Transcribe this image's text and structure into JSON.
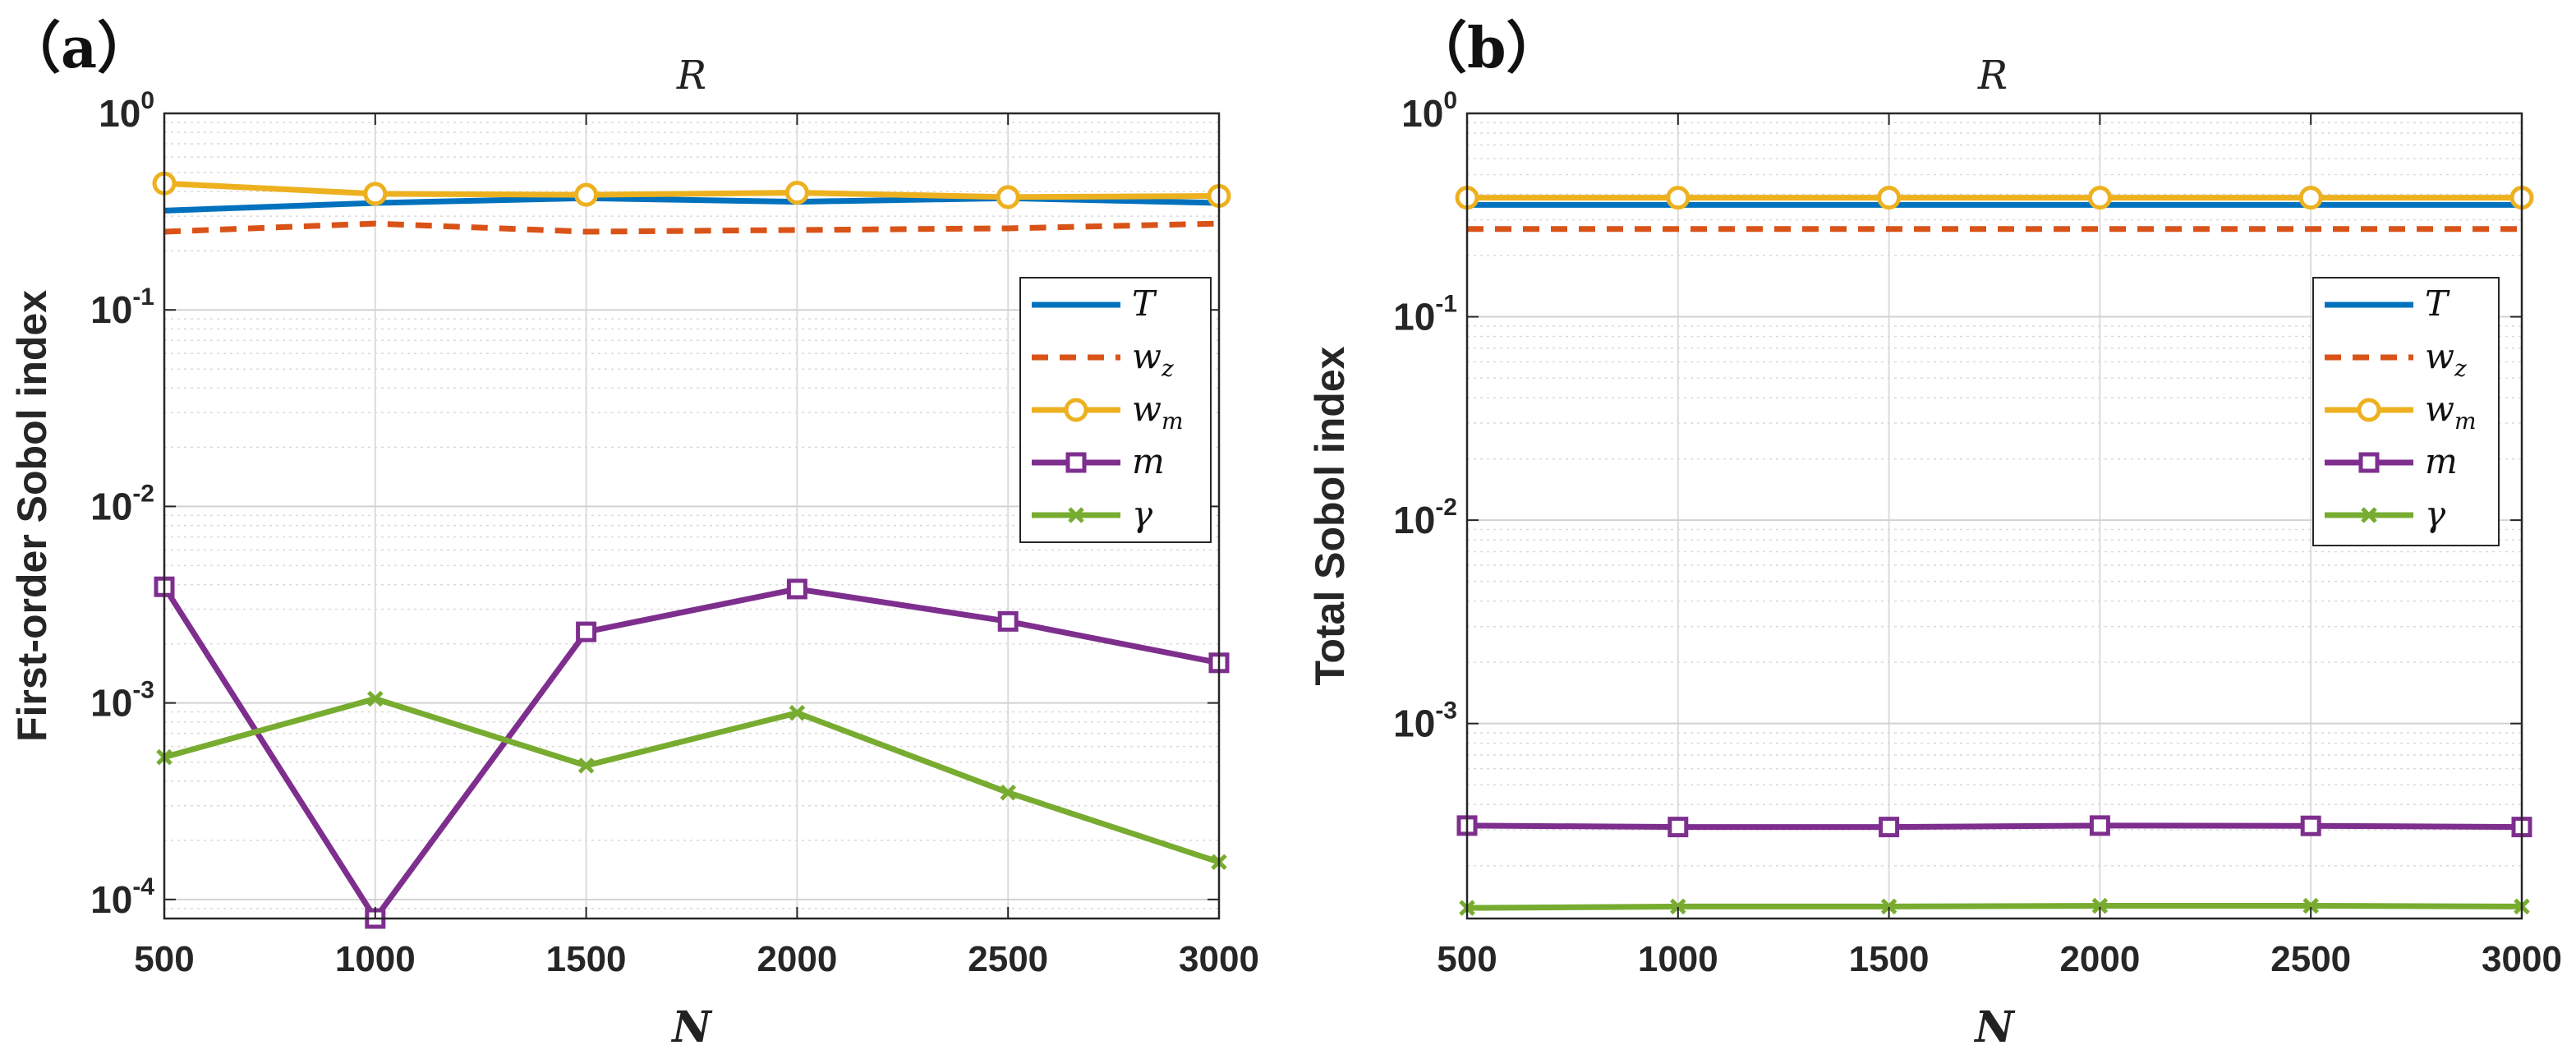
{
  "colors": {
    "T": "#0072BD",
    "w_z": "#D95319",
    "w_m": "#EDB120",
    "m": "#7E2F8E",
    "gamma": "#77AC30"
  },
  "chart_data": [
    {
      "panel_label": "（a）",
      "type": "line",
      "title": "R",
      "xlabel": "N",
      "ylabel": "First-order Sobol index",
      "yscale": "log",
      "xlim": [
        500,
        3000
      ],
      "ylim": [
        8e-05,
        1
      ],
      "grid": true,
      "legend_position": "upper-right",
      "x": [
        500,
        1000,
        1500,
        2000,
        2500,
        3000
      ],
      "xticks": [
        500,
        1000,
        1500,
        2000,
        2500,
        3000
      ],
      "xtick_labels": [
        "500",
        "1000",
        "1500",
        "2000",
        "2500",
        "3000"
      ],
      "yticks": [
        {
          "value": 1,
          "base": "10",
          "exp": "0"
        },
        {
          "value": 0.1,
          "base": "10",
          "exp": "-1"
        },
        {
          "value": 0.01,
          "base": "10",
          "exp": "-2"
        },
        {
          "value": 0.001,
          "base": "10",
          "exp": "-3"
        },
        {
          "value": 0.0001,
          "base": "10",
          "exp": "-4"
        }
      ],
      "series": [
        {
          "key": "T",
          "name": "T",
          "sub": "",
          "style": "solid",
          "marker": "none",
          "values": [
            0.32,
            0.35,
            0.37,
            0.355,
            0.37,
            0.35
          ]
        },
        {
          "key": "w_z",
          "name": "w",
          "sub": "z",
          "style": "dashed",
          "marker": "none",
          "values": [
            0.25,
            0.275,
            0.25,
            0.255,
            0.26,
            0.275
          ]
        },
        {
          "key": "w_m",
          "name": "w",
          "sub": "m",
          "style": "solid",
          "marker": "circle",
          "values": [
            0.44,
            0.39,
            0.385,
            0.395,
            0.375,
            0.38
          ]
        },
        {
          "key": "m",
          "name": "m",
          "sub": "",
          "style": "solid",
          "marker": "square",
          "values": [
            0.0039,
            8e-05,
            0.0023,
            0.0038,
            0.0026,
            0.0016
          ]
        },
        {
          "key": "gamma",
          "name": "γ",
          "sub": "",
          "style": "solid",
          "marker": "x",
          "values": [
            0.00053,
            0.00105,
            0.00048,
            0.00089,
            0.00035,
            0.000155
          ]
        }
      ]
    },
    {
      "panel_label": "（b）",
      "type": "line",
      "title": "R",
      "xlabel": "N",
      "ylabel": "Total Sobol index",
      "yscale": "log",
      "xlim": [
        500,
        3000
      ],
      "ylim": [
        0.00011,
        1
      ],
      "grid": true,
      "legend_position": "upper-right",
      "x": [
        500,
        1000,
        1500,
        2000,
        2500,
        3000
      ],
      "xticks": [
        500,
        1000,
        1500,
        2000,
        2500,
        3000
      ],
      "xtick_labels": [
        "500",
        "1000",
        "1500",
        "2000",
        "2500",
        "3000"
      ],
      "yticks": [
        {
          "value": 1,
          "base": "10",
          "exp": "0"
        },
        {
          "value": 0.1,
          "base": "10",
          "exp": "-1"
        },
        {
          "value": 0.01,
          "base": "10",
          "exp": "-2"
        },
        {
          "value": 0.001,
          "base": "10",
          "exp": "-3"
        }
      ],
      "series": [
        {
          "key": "T",
          "name": "T",
          "sub": "",
          "style": "solid",
          "marker": "none",
          "values": [
            0.355,
            0.355,
            0.355,
            0.355,
            0.355,
            0.355
          ]
        },
        {
          "key": "w_z",
          "name": "w",
          "sub": "z",
          "style": "dashed",
          "marker": "none",
          "values": [
            0.27,
            0.27,
            0.27,
            0.27,
            0.27,
            0.27
          ]
        },
        {
          "key": "w_m",
          "name": "w",
          "sub": "m",
          "style": "solid",
          "marker": "circle",
          "values": [
            0.385,
            0.385,
            0.385,
            0.385,
            0.385,
            0.385
          ]
        },
        {
          "key": "m",
          "name": "m",
          "sub": "",
          "style": "solid",
          "marker": "square",
          "values": [
            0.000315,
            0.00031,
            0.00031,
            0.000315,
            0.000314,
            0.00031
          ]
        },
        {
          "key": "gamma",
          "name": "γ",
          "sub": "",
          "style": "solid",
          "marker": "x",
          "values": [
            0.000124,
            0.000126,
            0.000126,
            0.000127,
            0.000127,
            0.000126
          ]
        }
      ]
    }
  ]
}
